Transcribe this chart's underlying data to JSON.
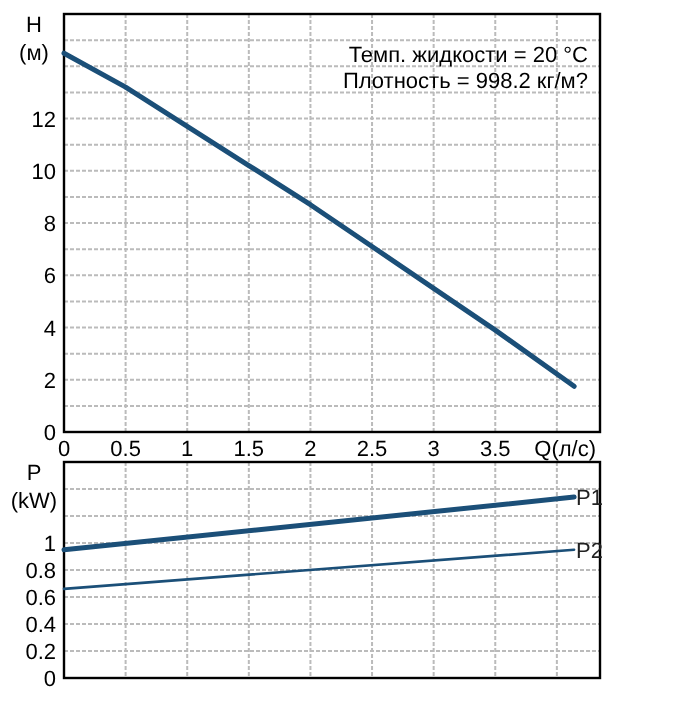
{
  "chart_data": [
    {
      "type": "line",
      "xlabel": "Q(л/с)",
      "ylabel": "H (м)",
      "xlim": [
        0,
        4.35
      ],
      "ylim": [
        0,
        16
      ],
      "xticks": [
        0,
        0.5,
        1,
        1.5,
        2,
        2.5,
        3,
        3.5,
        {
          "value": 4,
          "label": null
        }
      ],
      "yticks": [
        0,
        {
          "value": 1,
          "label": null
        },
        2,
        {
          "value": 3,
          "label": null
        },
        4,
        {
          "value": 5,
          "label": null
        },
        6,
        {
          "value": 7,
          "label": null
        },
        8,
        {
          "value": 9,
          "label": null
        },
        10,
        {
          "value": 11,
          "label": null
        },
        12,
        {
          "value": 13,
          "label": null
        },
        {
          "value": 14,
          "label": null
        },
        {
          "value": 15,
          "label": null
        }
      ],
      "grid": true,
      "annotations": [
        "Темп. жидкости = 20 °C",
        "Плотность = 998.2 кг/м?"
      ],
      "series": [
        {
          "color": "#1b4f78",
          "x": [
            0,
            0.5,
            1,
            1.5,
            2,
            2.5,
            3,
            3.5,
            4.14
          ],
          "values": [
            14.5,
            13.2,
            11.7,
            10.2,
            8.7,
            7.1,
            5.5,
            3.9,
            1.75
          ]
        }
      ]
    },
    {
      "type": "line",
      "ylabel": "P (kW)",
      "xlim": [
        0,
        4.35
      ],
      "ylim": [
        0,
        1.6
      ],
      "tick_labels": "y",
      "xticks": [
        0,
        0.5,
        1,
        1.5,
        2,
        2.5,
        3,
        3.5,
        4
      ],
      "yticks": [
        0,
        0.2,
        0.4,
        0.6,
        0.8,
        1,
        {
          "value": 1.2,
          "label": null
        },
        {
          "value": 1.4,
          "label": null
        }
      ],
      "grid": true,
      "series": [
        {
          "name": "P1",
          "color": "#1b4f78",
          "x": [
            0,
            4.14
          ],
          "values": [
            0.95,
            1.34
          ]
        },
        {
          "name": "P2",
          "color": "#1b4f78",
          "x": [
            0,
            4.14
          ],
          "values": [
            0.66,
            0.95
          ]
        }
      ]
    }
  ]
}
